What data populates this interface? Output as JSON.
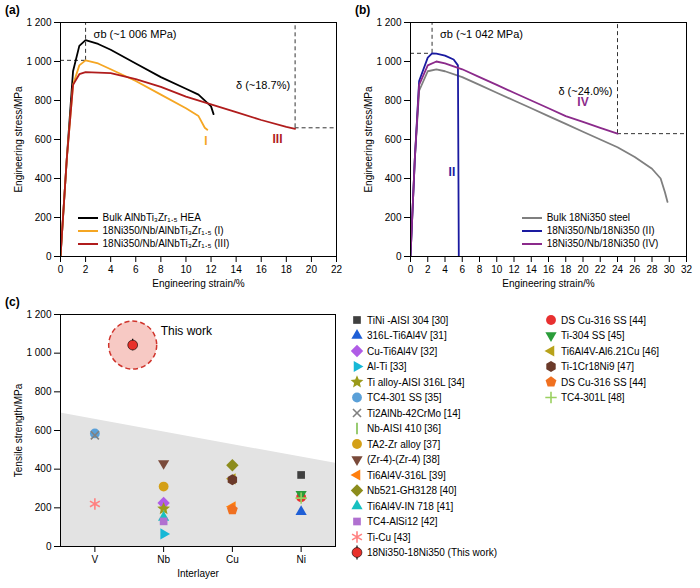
{
  "chart_data": [
    {
      "panel": "(a)",
      "type": "line",
      "x_label": "Engineering strain/%",
      "y_label": "Engineering stress/MPa",
      "xlim": [
        0,
        22
      ],
      "xticks": [
        0,
        2,
        4,
        6,
        8,
        10,
        12,
        14,
        16,
        18,
        20,
        22
      ],
      "ylim": [
        0,
        1200
      ],
      "yticks": [
        0,
        200,
        400,
        600,
        800,
        {
          "value": 1000,
          "label": "1 000"
        },
        {
          "value": 1200,
          "label": "1 200"
        }
      ],
      "legend": "lower left",
      "series": [
        {
          "name": "Bulk AlNbTi₃Zr₁.₅ HEA",
          "color": "#000000",
          "x": [
            0,
            0.5,
            1,
            1.5,
            2,
            3,
            4,
            6,
            8,
            10,
            11,
            12,
            12.2
          ],
          "values": [
            0,
            500,
            950,
            1080,
            1110,
            1090,
            1060,
            990,
            920,
            860,
            830,
            770,
            730
          ]
        },
        {
          "name": "18Ni350/Nb/AlNbTi₃Zr₁.₅ (I)",
          "color": "#f5a623",
          "x": [
            0,
            0.5,
            1,
            1.5,
            2,
            3,
            4,
            6,
            8,
            10,
            11,
            11.5,
            11.7
          ],
          "values": [
            0,
            500,
            880,
            980,
            1006,
            990,
            960,
            900,
            830,
            760,
            720,
            660,
            650
          ],
          "label": {
            "text": "I",
            "x": 11.6,
            "y": 590
          }
        },
        {
          "name": "18Ni350/Nb/AlNbTi₃Zr₁.₅ (III)",
          "color": "#b01c1c",
          "x": [
            0,
            0.5,
            1,
            1.5,
            2,
            4,
            6,
            8,
            10,
            12,
            14,
            16,
            18,
            18.7
          ],
          "values": [
            0,
            500,
            880,
            935,
            945,
            940,
            910,
            870,
            820,
            780,
            740,
            700,
            665,
            655
          ],
          "label": {
            "text": "III",
            "x": 17.3,
            "y": 600
          }
        }
      ],
      "annotations": [
        {
          "text": "σb (~1 006 MPa)",
          "x": 2,
          "y": 1006
        },
        {
          "text": "δ (~18.7%)",
          "x": 18.7,
          "y": 660
        }
      ]
    },
    {
      "panel": "(b)",
      "type": "line",
      "x_label": "Engineering strain/%",
      "y_label": "Engineering stress/MPa",
      "xlim": [
        0,
        32
      ],
      "xticks": [
        0,
        2,
        4,
        6,
        8,
        10,
        12,
        14,
        16,
        18,
        20,
        22,
        24,
        26,
        28,
        30,
        32
      ],
      "ylim": [
        0,
        1200
      ],
      "yticks": [
        0,
        200,
        400,
        600,
        800,
        {
          "value": 1000,
          "label": "1 000"
        },
        {
          "value": 1200,
          "label": "1 200"
        }
      ],
      "legend": "lower right",
      "series": [
        {
          "name": "Bulk 18Ni350 steel",
          "color": "#7f7f7f",
          "x": [
            0,
            0.5,
            1,
            2,
            3,
            4,
            6,
            8,
            10,
            12,
            14,
            16,
            18,
            20,
            22,
            24,
            26,
            28,
            29,
            29.5,
            29.8
          ],
          "values": [
            0,
            500,
            850,
            950,
            960,
            950,
            920,
            880,
            840,
            800,
            760,
            720,
            680,
            640,
            600,
            560,
            510,
            450,
            400,
            330,
            280
          ]
        },
        {
          "name": "18Ni350/Nb/18Ni350 (II)",
          "color": "#1a1aa0",
          "x": [
            0,
            0.5,
            1,
            2,
            2.5,
            3,
            4,
            5,
            5.5,
            5.6
          ],
          "values": [
            0,
            500,
            900,
            1020,
            1042,
            1040,
            1030,
            1010,
            980,
            0
          ],
          "label": {
            "text": "II",
            "x": 4.8,
            "y": 430
          }
        },
        {
          "name": "18Ni350/Nb/18Ni350 (IV)",
          "color": "#8b2a8b",
          "x": [
            0,
            0.5,
            1,
            2,
            3,
            4,
            6,
            8,
            10,
            12,
            14,
            16,
            18,
            20,
            22,
            24
          ],
          "values": [
            0,
            500,
            880,
            980,
            1000,
            990,
            960,
            920,
            880,
            840,
            800,
            760,
            720,
            690,
            660,
            630
          ],
          "label": {
            "text": "IV",
            "x": 20,
            "y": 790
          }
        }
      ],
      "annotations": [
        {
          "text": "σb (~1 042 MPa)",
          "x": 2.5,
          "y": 1042
        },
        {
          "text": "δ (~24.0%)",
          "x": 24,
          "y": 630
        }
      ]
    },
    {
      "panel": "(c)",
      "type": "scatter",
      "x_label": "Interlayer",
      "y_label": "Tensile strength/MPa",
      "xlim": [
        -0.5,
        3.5
      ],
      "xticks": [
        {
          "value": 0,
          "label": "V"
        },
        {
          "value": 1,
          "label": "Nb"
        },
        {
          "value": 2,
          "label": "Cu"
        },
        {
          "value": 3,
          "label": "Ni"
        }
      ],
      "ylim": [
        0,
        1200
      ],
      "yticks": [
        0,
        200,
        400,
        600,
        800,
        {
          "value": 1000,
          "label": "1 000"
        },
        {
          "value": 1200,
          "label": "1 200"
        }
      ],
      "legend": "right",
      "region": {
        "x": [
          -0.5,
          3.5
        ],
        "y": [
          690,
          430
        ]
      },
      "series": [
        {
          "name": "TiNi -AISI 304 [30]",
          "color": "#404040",
          "marker": "square",
          "x": [
            3
          ],
          "values": [
            370
          ]
        },
        {
          "name": "316L-Ti6Al4V [31]",
          "color": "#1f5fd6",
          "marker": "triangle-up",
          "x": [
            3
          ],
          "values": [
            180
          ]
        },
        {
          "name": "Cu-Ti6Al4V [32]",
          "color": "#b05ce6",
          "marker": "diamond",
          "x": [
            1
          ],
          "values": [
            225
          ]
        },
        {
          "name": "Al-Ti [33]",
          "color": "#17b8d6",
          "marker": "triangle-right",
          "x": [
            1
          ],
          "values": [
            65
          ]
        },
        {
          "name": "Ti alloy-AISI 316L [34]",
          "color": "#9a9a1a",
          "marker": "star",
          "x": [
            1
          ],
          "values": [
            195
          ]
        },
        {
          "name": "TC4-301 SS [35]",
          "color": "#5aa0d8",
          "marker": "circle",
          "x": [
            0
          ],
          "values": [
            585
          ]
        },
        {
          "name": "Ti2AlNb-42CrMo [14]",
          "color": "#808080",
          "marker": "times",
          "x": [
            0
          ],
          "values": [
            575
          ]
        },
        {
          "name": "Nb-AISI 410 [36]",
          "color": "#7fbf4f",
          "marker": "vline",
          "x": [
            1
          ],
          "values": [
            160
          ]
        },
        {
          "name": "TA2-Zr alloy [37]",
          "color": "#d4a017",
          "marker": "circle",
          "x": [
            1
          ],
          "values": [
            310
          ]
        },
        {
          "name": "(Zr-4)-(Zr-4) [38]",
          "color": "#7a4a3a",
          "marker": "triangle-down",
          "x": [
            1
          ],
          "values": [
            430
          ]
        },
        {
          "name": "Ti6Al4V-316L [39]",
          "color": "#ff7f0e",
          "marker": "triangle-left",
          "x": [
            2
          ],
          "values": [
            205
          ]
        },
        {
          "name": "Nb521-GH3128 [40]",
          "color": "#8c8c1c",
          "marker": "diamond",
          "x": [
            2
          ],
          "values": [
            420
          ]
        },
        {
          "name": "Ti6Al4V-IN 718 [41]",
          "color": "#17c0c0",
          "marker": "triangle-up",
          "x": [
            1
          ],
          "values": [
            150
          ]
        },
        {
          "name": "TC4-AlSi12 [42]",
          "color": "#b070d0",
          "marker": "square",
          "x": [
            1
          ],
          "values": [
            130
          ]
        },
        {
          "name": "Ti-Cu [43]",
          "color": "#ff8080",
          "marker": "asterisk",
          "x": [
            0
          ],
          "values": [
            220
          ]
        },
        {
          "name": "18Ni350-18Ni350 (This work)",
          "color": "#e8302a",
          "marker": "circle",
          "x": [
            0.55
          ],
          "values": [
            1042
          ],
          "error": [
            30
          ]
        },
        {
          "name": "DS Cu-316 SS [44]",
          "color": "#e83030",
          "marker": "circle",
          "x": [
            3
          ],
          "values": [
            255
          ]
        },
        {
          "name": "Ti-304 SS [45]",
          "color": "#2a9d3a",
          "marker": "triangle-down",
          "x": [
            3
          ],
          "values": [
            270
          ]
        },
        {
          "name": "Ti6Al4V-Al6.21Cu [46]",
          "color": "#b8a21a",
          "marker": "triangle-left",
          "x": [
            2
          ],
          "values": [
            350
          ]
        },
        {
          "name": "Ti-1Cr18Ni9 [47]",
          "color": "#6b3a2a",
          "marker": "hexagon",
          "x": [
            2
          ],
          "values": [
            345
          ]
        },
        {
          "name": "DS Cu-316 SS [44]",
          "color": "#f07020",
          "marker": "pentagon",
          "x": [
            2
          ],
          "values": [
            190
          ]
        },
        {
          "name": "TC4-301L [48]",
          "color": "#9ad060",
          "marker": "plus",
          "x": [
            3
          ],
          "values": [
            250
          ]
        }
      ],
      "annotations": [
        {
          "text": "This work",
          "x": 0.55,
          "y": 1042
        }
      ]
    }
  ]
}
